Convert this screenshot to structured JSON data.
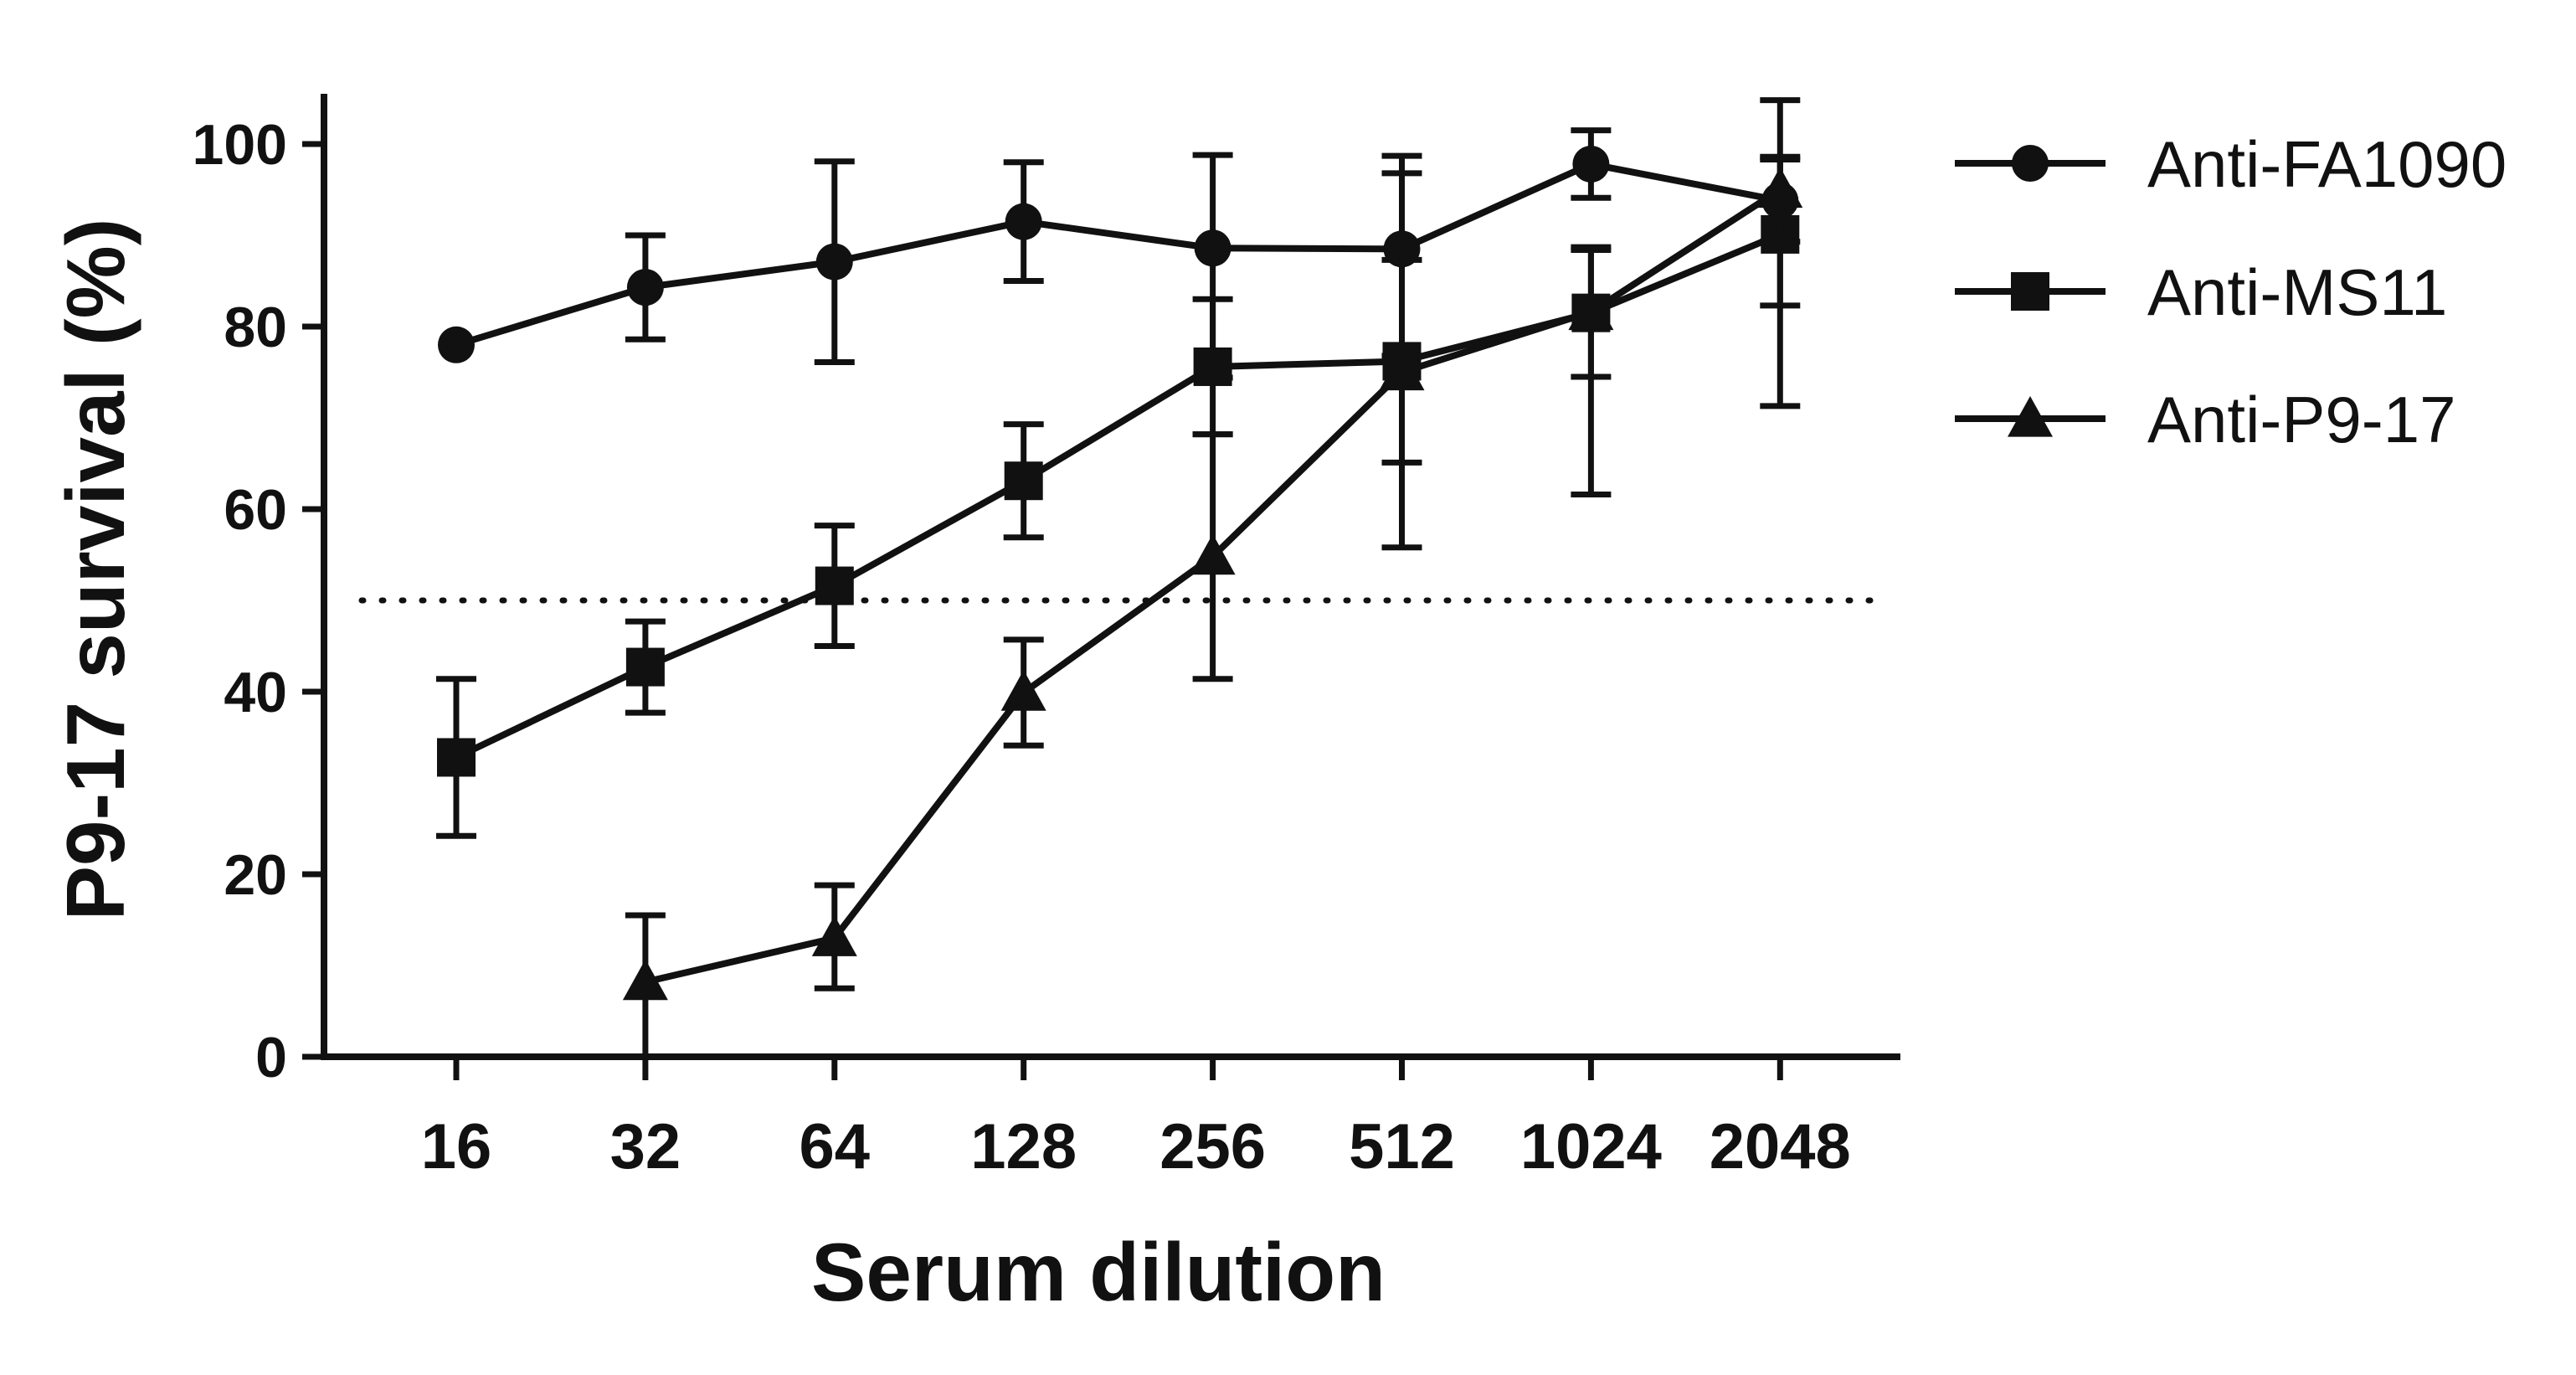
{
  "chart_data": {
    "type": "line",
    "xlabel": "Serum dilution",
    "ylabel": "P9-17 survival (%)",
    "categories": [
      "16",
      "32",
      "64",
      "128",
      "256",
      "512",
      "1024",
      "2048"
    ],
    "y_ticks": [
      "0",
      "20",
      "40",
      "60",
      "80",
      "100"
    ],
    "ylim": [
      0,
      100
    ],
    "x_scale": "log2",
    "grid": false,
    "legend_position": "top-right",
    "reference_line": {
      "y": 50,
      "style": "dotted"
    },
    "series": [
      {
        "name": "Anti-FA1090",
        "marker": "circle",
        "values": [
          78,
          84.3,
          87.1,
          91.5,
          88.6,
          88.5,
          97.8,
          93.8
        ],
        "err_low": [
          0,
          5.7,
          11,
          6.5,
          14.2,
          11.7,
          3.7,
          4.5
        ],
        "err_high": [
          0,
          5.7,
          11,
          6.5,
          10.2,
          10.2,
          3.7,
          4.5
        ]
      },
      {
        "name": "Anti-MS11",
        "marker": "square",
        "values": [
          32.8,
          42.7,
          51.6,
          63.1,
          75.6,
          76.2,
          81.5,
          90.1
        ],
        "err_low": [
          8.6,
          5,
          6.6,
          6.2,
          7.4,
          11.1,
          19.9,
          18.8
        ],
        "err_high": [
          8.6,
          5,
          6.6,
          6.2,
          7.4,
          11.1,
          6.9,
          8.5
        ]
      },
      {
        "name": "Anti-P9-17",
        "marker": "triangle",
        "values": [
          null,
          8.2,
          13,
          39.9,
          54.8,
          75,
          81.6,
          95
        ],
        "err_low": [
          null,
          8.2,
          5.5,
          5.8,
          13.4,
          19.2,
          7.1,
          12.7
        ],
        "err_high": [
          null,
          7.3,
          5.8,
          5.8,
          13.4,
          21.8,
          7.1,
          9.8
        ]
      }
    ]
  },
  "style": {
    "line_color": "#111111",
    "background": "#ffffff"
  }
}
